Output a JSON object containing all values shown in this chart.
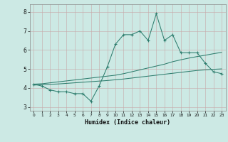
{
  "xlabel": "Humidex (Indice chaleur)",
  "x": [
    0,
    1,
    2,
    3,
    4,
    5,
    6,
    7,
    8,
    9,
    10,
    11,
    12,
    13,
    14,
    15,
    16,
    17,
    18,
    19,
    20,
    21,
    22,
    23
  ],
  "y_main": [
    4.2,
    4.1,
    3.9,
    3.8,
    3.8,
    3.7,
    3.7,
    3.3,
    4.1,
    5.1,
    6.3,
    6.8,
    6.8,
    7.0,
    6.5,
    7.9,
    6.5,
    6.8,
    5.85,
    5.85,
    5.85,
    5.3,
    4.85,
    4.75
  ],
  "y_upper": [
    4.2,
    4.22,
    4.27,
    4.32,
    4.37,
    4.42,
    4.47,
    4.52,
    4.57,
    4.62,
    4.67,
    4.75,
    4.85,
    4.95,
    5.05,
    5.15,
    5.25,
    5.38,
    5.48,
    5.57,
    5.65,
    5.72,
    5.8,
    5.87
  ],
  "y_lower": [
    4.15,
    4.17,
    4.19,
    4.21,
    4.24,
    4.27,
    4.3,
    4.33,
    4.36,
    4.39,
    4.43,
    4.47,
    4.52,
    4.57,
    4.62,
    4.67,
    4.72,
    4.77,
    4.82,
    4.87,
    4.92,
    4.95,
    4.98,
    5.0
  ],
  "line_color": "#2e7d6e",
  "bg_color": "#cce9e4",
  "grid_color_major": "#b8d8d4",
  "grid_color_minor": "#d8ecea",
  "ylim": [
    2.8,
    8.4
  ],
  "xlim": [
    -0.5,
    23.5
  ],
  "yticks": [
    3,
    4,
    5,
    6,
    7,
    8
  ],
  "xticks": [
    0,
    1,
    2,
    3,
    4,
    5,
    6,
    7,
    8,
    9,
    10,
    11,
    12,
    13,
    14,
    15,
    16,
    17,
    18,
    19,
    20,
    21,
    22,
    23
  ]
}
